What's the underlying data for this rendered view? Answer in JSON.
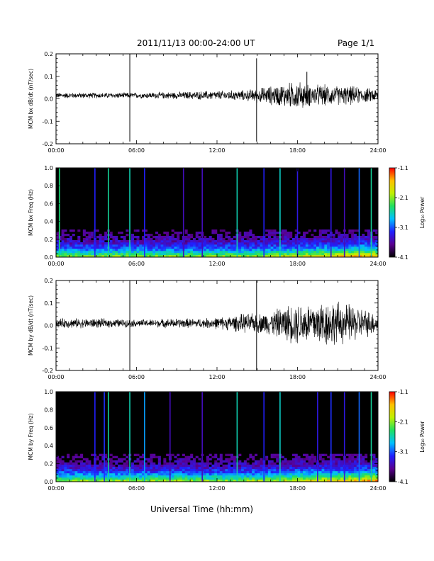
{
  "header": {
    "title": "2011/11/13  00:00-24:00 UT",
    "page": "Page 1/1"
  },
  "footer": {
    "xlabel": "Universal Time (hh:mm)"
  },
  "colorbar": {
    "label": "Log₁₀ Power",
    "ticks": [
      "-1.1",
      "-2.1",
      "-3.1",
      "-4.1"
    ],
    "colors": [
      "#000000",
      "#5a0090",
      "#2020ff",
      "#00c0ff",
      "#20e060",
      "#c0f000",
      "#ffc000",
      "#ff0000"
    ]
  },
  "chart_data": [
    {
      "type": "line",
      "title": "",
      "ylabel": "MCM bx dB/dt (nT/sec)",
      "xlabel": "",
      "xlim": [
        0,
        24
      ],
      "ylim": [
        -0.2,
        0.2
      ],
      "xticks": [
        "00:00",
        "06:00",
        "12:00",
        "18:00",
        "24:00"
      ],
      "yticks": [
        "0.2",
        "0.1",
        "0.0",
        "-0.1",
        "-0.2"
      ],
      "grid": false,
      "series": [
        {
          "baseline": 0.015,
          "x_hours": [
            0,
            3,
            6,
            9,
            12,
            14,
            15,
            16,
            17,
            18,
            19,
            20,
            21,
            22,
            23,
            24
          ],
          "amplitude": [
            0.012,
            0.012,
            0.012,
            0.015,
            0.02,
            0.022,
            0.03,
            0.04,
            0.05,
            0.06,
            0.045,
            0.045,
            0.04,
            0.04,
            0.03,
            0.03
          ],
          "spikes": [
            {
              "x": 5.5,
              "y": [
                -0.19,
                0.2
              ]
            },
            {
              "x": 14.95,
              "y": [
                -0.19,
                0.18
              ]
            },
            {
              "x": 18.7,
              "y": [
                -0.02,
                0.12
              ]
            }
          ]
        }
      ]
    },
    {
      "type": "heatmap",
      "title": "",
      "ylabel": "MCM bx Freq (Hz)",
      "xlim": [
        0,
        24
      ],
      "ylim": [
        0,
        1.0
      ],
      "xticks": [
        "00:00",
        "06:00",
        "12:00",
        "18:00",
        "24:00"
      ],
      "yticks": [
        "1.0",
        "0.8",
        "0.6",
        "0.4",
        "0.2",
        "0.0"
      ],
      "color_range": [
        -4.1,
        -1.1
      ],
      "lines": [
        {
          "x": 0.25,
          "level": 0.55
        },
        {
          "x": 2.9,
          "level": 0.28
        },
        {
          "x": 3.9,
          "level": 0.52
        },
        {
          "x": 5.5,
          "level": 0.5
        },
        {
          "x": 6.6,
          "level": 0.28
        },
        {
          "x": 9.5,
          "level": 0.2
        },
        {
          "x": 10.9,
          "level": 0.2
        },
        {
          "x": 13.5,
          "level": 0.5
        },
        {
          "x": 15.5,
          "level": 0.28
        },
        {
          "x": 16.7,
          "level": 0.48
        },
        {
          "x": 18.0,
          "level": 0.25
        },
        {
          "x": 20.5,
          "level": 0.25
        },
        {
          "x": 21.5,
          "level": 0.2
        },
        {
          "x": 22.6,
          "level": 0.35
        },
        {
          "x": 23.5,
          "level": 0.52
        }
      ]
    },
    {
      "type": "line",
      "title": "",
      "ylabel": "MCM by dB/dt (nT/sec)",
      "xlim": [
        0,
        24
      ],
      "ylim": [
        -0.2,
        0.2
      ],
      "xticks": [
        "00:00",
        "06:00",
        "12:00",
        "18:00",
        "24:00"
      ],
      "yticks": [
        "0.2",
        "0.1",
        "0.0",
        "-0.1",
        "-0.2"
      ],
      "grid": false,
      "series": [
        {
          "baseline": 0.01,
          "x_hours": [
            0,
            3,
            6,
            9,
            11,
            13,
            14,
            15,
            16,
            17,
            18,
            19,
            20,
            21,
            22,
            23,
            24
          ],
          "amplitude": [
            0.02,
            0.02,
            0.015,
            0.02,
            0.02,
            0.03,
            0.04,
            0.04,
            0.05,
            0.07,
            0.09,
            0.09,
            0.1,
            0.09,
            0.08,
            0.06,
            0.04
          ],
          "spikes": [
            {
              "x": 5.5,
              "y": [
                -0.2,
                0.2
              ]
            },
            {
              "x": 14.95,
              "y": [
                -0.2,
                0.2
              ]
            }
          ]
        }
      ]
    },
    {
      "type": "heatmap",
      "title": "",
      "ylabel": "MCM by Freq (Hz)",
      "xlim": [
        0,
        24
      ],
      "ylim": [
        0,
        1.0
      ],
      "xticks": [
        "00:00",
        "06:00",
        "12:00",
        "18:00",
        "24:00"
      ],
      "yticks": [
        "1.0",
        "0.8",
        "0.6",
        "0.4",
        "0.2",
        "0.0"
      ],
      "color_range": [
        -4.1,
        -1.1
      ],
      "lines": [
        {
          "x": 2.9,
          "level": 0.28
        },
        {
          "x": 3.6,
          "level": 0.3
        },
        {
          "x": 3.9,
          "level": 0.52
        },
        {
          "x": 5.5,
          "level": 0.5
        },
        {
          "x": 6.6,
          "level": 0.4
        },
        {
          "x": 8.5,
          "level": 0.2
        },
        {
          "x": 10.9,
          "level": 0.2
        },
        {
          "x": 13.5,
          "level": 0.5
        },
        {
          "x": 15.5,
          "level": 0.28
        },
        {
          "x": 16.7,
          "level": 0.48
        },
        {
          "x": 19.5,
          "level": 0.25
        },
        {
          "x": 20.5,
          "level": 0.3
        },
        {
          "x": 21.5,
          "level": 0.25
        },
        {
          "x": 22.6,
          "level": 0.35
        },
        {
          "x": 23.5,
          "level": 0.52
        }
      ]
    }
  ]
}
